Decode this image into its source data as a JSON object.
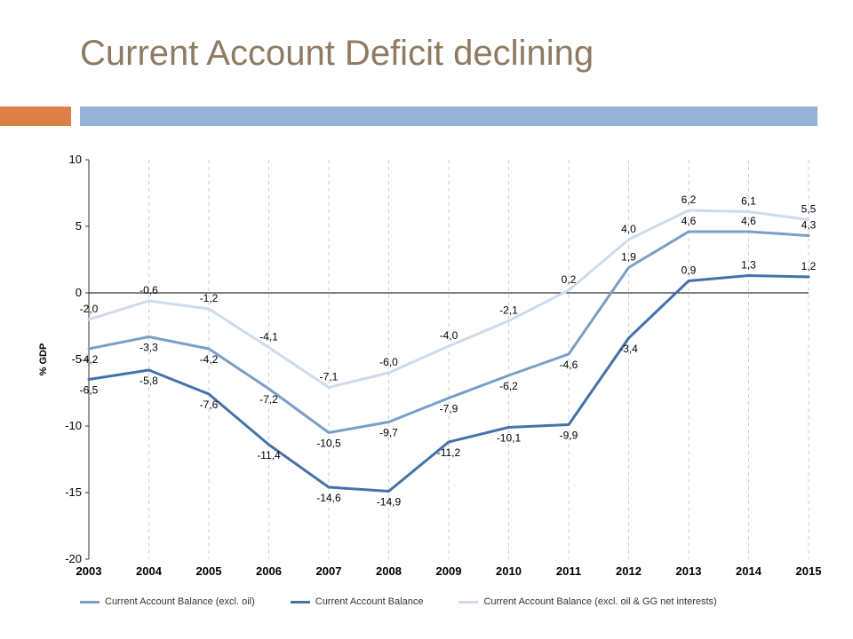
{
  "title": "Current Account Deficit declining",
  "accent": {
    "left_color": "#dd8047",
    "right_color": "#94b3d7"
  },
  "chart": {
    "type": "line",
    "ylabel": "% GDP",
    "ylim": [
      -20,
      10
    ],
    "ytick_step": 5,
    "xticks": [
      "2003",
      "2004",
      "2005",
      "2006",
      "2007",
      "2008",
      "2009",
      "2010",
      "2011",
      "2012",
      "2013",
      "2014",
      "2015"
    ],
    "background_color": "#ffffff",
    "grid_color": "#bcd0e8",
    "grid_dash": "4 4",
    "zero_line_color": "#000000",
    "series": [
      {
        "name": "Current Account Balance (excl. oil)",
        "color": "#7a9fc6",
        "width": 3,
        "values": [
          -4.2,
          -3.3,
          -4.2,
          -7.2,
          -10.5,
          -9.7,
          -7.9,
          -6.2,
          -4.6,
          1.9,
          4.6,
          4.6,
          4.3
        ],
        "labels": [
          "-4,2",
          "-3,3",
          "-4,2",
          "-7,2",
          "-10,5",
          "-9,7",
          "-7,9",
          "-6,2",
          "-4,6",
          "1,9",
          "4,6",
          "4,6",
          "4,3"
        ],
        "label_dy": [
          16,
          16,
          16,
          16,
          16,
          16,
          16,
          16,
          16,
          -8,
          -8,
          -8,
          -8
        ]
      },
      {
        "name": "Current Account Balance",
        "color": "#4472a8",
        "width": 3,
        "values": [
          -6.5,
          -5.8,
          -7.6,
          -11.4,
          -14.6,
          -14.9,
          -11.2,
          -10.1,
          -9.9,
          -3.4,
          0.9,
          1.3,
          1.2
        ],
        "labels": [
          "-6,5",
          "-5,8",
          "-7,6",
          "-11,4",
          "-14,6",
          "-14,9",
          "-11,2",
          "-10,1",
          "-9,9",
          "-3,4",
          "0,9",
          "1,3",
          "1,2"
        ],
        "label_dy": [
          16,
          16,
          16,
          16,
          16,
          16,
          16,
          16,
          16,
          16,
          -8,
          -8,
          -8
        ]
      },
      {
        "name": "Current Account Balance (excl. oil & GG net interests)",
        "color": "#cddbeb",
        "width": 3,
        "values": [
          -2.0,
          -0.6,
          -1.2,
          -4.1,
          -7.1,
          -6.0,
          -4.0,
          -2.1,
          0.2,
          4.0,
          6.2,
          6.1,
          5.5
        ],
        "labels": [
          "-2,0",
          "-0,6",
          "-1,2",
          "-4,1",
          "-7,1",
          "-6,0",
          "-4,0",
          "-2,1",
          "0,2",
          "4,0",
          "6,2",
          "6,1",
          "5,5"
        ],
        "label_dy": [
          -8,
          -8,
          -8,
          -8,
          -8,
          -8,
          -8,
          -8,
          -8,
          -8,
          -8,
          -8,
          -8
        ]
      }
    ],
    "axis_fontsize": 13,
    "label_fontsize": 12,
    "ylabel_fontsize": 11
  }
}
